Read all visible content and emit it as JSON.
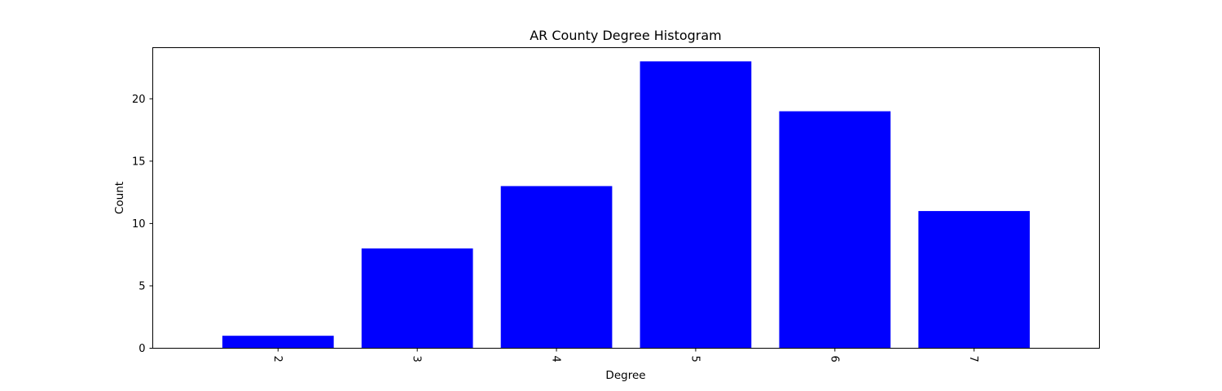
{
  "chart_data": {
    "type": "bar",
    "title": "AR County Degree Histogram",
    "xlabel": "Degree",
    "ylabel": "Count",
    "categories": [
      "2",
      "3",
      "4",
      "5",
      "6",
      "7"
    ],
    "values": [
      1,
      8,
      13,
      23,
      19,
      11
    ],
    "ylim": [
      0,
      24.1
    ],
    "yticks": [
      0,
      5,
      10,
      15,
      20
    ],
    "x_tick_rotation": "-90 degrees (reads top-to-bottom)",
    "bar_color": "#0000ff",
    "grid": false,
    "legend": "none"
  }
}
